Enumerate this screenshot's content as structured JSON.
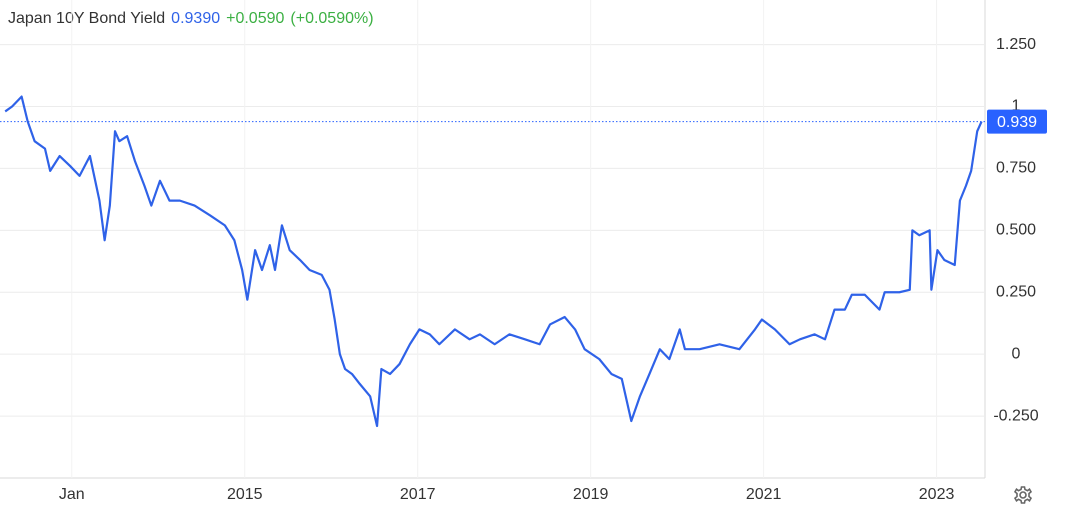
{
  "header": {
    "title": "Japan 10Y Bond Yield",
    "price": "0.9390",
    "change": "+0.0590",
    "change_pct": "(+0.0590%)"
  },
  "chart_data": {
    "type": "line",
    "xlim": [
      2012.17,
      2023.56
    ],
    "ylim": [
      -0.5,
      1.43
    ],
    "xticks": [
      {
        "value": 2013,
        "label": "Jan"
      },
      2015,
      2017,
      2019,
      2021,
      2023
    ],
    "yticks": [
      {
        "value": -0.25,
        "label": "-0.250"
      },
      0,
      {
        "value": 0.25,
        "label": "0.250"
      },
      {
        "value": 0.5,
        "label": "0.500"
      },
      {
        "value": 0.75,
        "label": "0.750"
      },
      1,
      {
        "value": 1.25,
        "label": "1.250"
      }
    ],
    "grid": true,
    "price_line": {
      "value": 0.939,
      "label": "0.939",
      "color": "#2962ff"
    },
    "series": [
      {
        "name": "Japan 10Y Bond Yield",
        "color": "#2f62e8",
        "x": [
          2012.23,
          2012.31,
          2012.42,
          2012.49,
          2012.57,
          2012.69,
          2012.75,
          2012.86,
          2012.98,
          2013.09,
          2013.21,
          2013.32,
          2013.38,
          2013.44,
          2013.5,
          2013.55,
          2013.64,
          2013.73,
          2013.84,
          2013.92,
          2014.02,
          2014.13,
          2014.25,
          2014.42,
          2014.6,
          2014.77,
          2014.88,
          2014.97,
          2015.03,
          2015.12,
          2015.2,
          2015.29,
          2015.35,
          2015.43,
          2015.52,
          2015.64,
          2015.75,
          2015.89,
          2015.98,
          2016.04,
          2016.1,
          2016.16,
          2016.24,
          2016.33,
          2016.45,
          2016.53,
          2016.58,
          2016.68,
          2016.79,
          2016.91,
          2017.02,
          2017.14,
          2017.25,
          2017.43,
          2017.6,
          2017.72,
          2017.89,
          2018.06,
          2018.24,
          2018.41,
          2018.53,
          2018.7,
          2018.82,
          2018.93,
          2019.1,
          2019.24,
          2019.36,
          2019.47,
          2019.57,
          2019.68,
          2019.8,
          2019.91,
          2020.03,
          2020.09,
          2020.26,
          2020.49,
          2020.72,
          2020.9,
          2020.98,
          2021.13,
          2021.3,
          2021.42,
          2021.59,
          2021.71,
          2021.82,
          2021.94,
          2022.02,
          2022.17,
          2022.34,
          2022.4,
          2022.57,
          2022.69,
          2022.72,
          2022.8,
          2022.92,
          2022.94,
          2023.01,
          2023.09,
          2023.21,
          2023.27,
          2023.34,
          2023.4,
          2023.47,
          2023.52
        ],
        "values": [
          0.98,
          1.0,
          1.04,
          0.94,
          0.86,
          0.83,
          0.74,
          0.8,
          0.76,
          0.72,
          0.8,
          0.62,
          0.46,
          0.6,
          0.9,
          0.86,
          0.88,
          0.78,
          0.68,
          0.6,
          0.7,
          0.62,
          0.62,
          0.6,
          0.56,
          0.52,
          0.46,
          0.34,
          0.22,
          0.42,
          0.34,
          0.44,
          0.34,
          0.52,
          0.42,
          0.38,
          0.34,
          0.32,
          0.26,
          0.14,
          0.0,
          -0.06,
          -0.08,
          -0.12,
          -0.17,
          -0.29,
          -0.06,
          -0.08,
          -0.04,
          0.04,
          0.1,
          0.08,
          0.04,
          0.1,
          0.06,
          0.08,
          0.04,
          0.08,
          0.06,
          0.04,
          0.12,
          0.15,
          0.1,
          0.02,
          -0.02,
          -0.08,
          -0.1,
          -0.27,
          -0.17,
          -0.08,
          0.02,
          -0.02,
          0.1,
          0.02,
          0.02,
          0.04,
          0.02,
          0.1,
          0.14,
          0.1,
          0.04,
          0.06,
          0.08,
          0.06,
          0.18,
          0.18,
          0.24,
          0.24,
          0.18,
          0.25,
          0.25,
          0.26,
          0.5,
          0.48,
          0.5,
          0.26,
          0.42,
          0.38,
          0.36,
          0.62,
          0.68,
          0.74,
          0.9,
          0.939
        ]
      }
    ]
  }
}
